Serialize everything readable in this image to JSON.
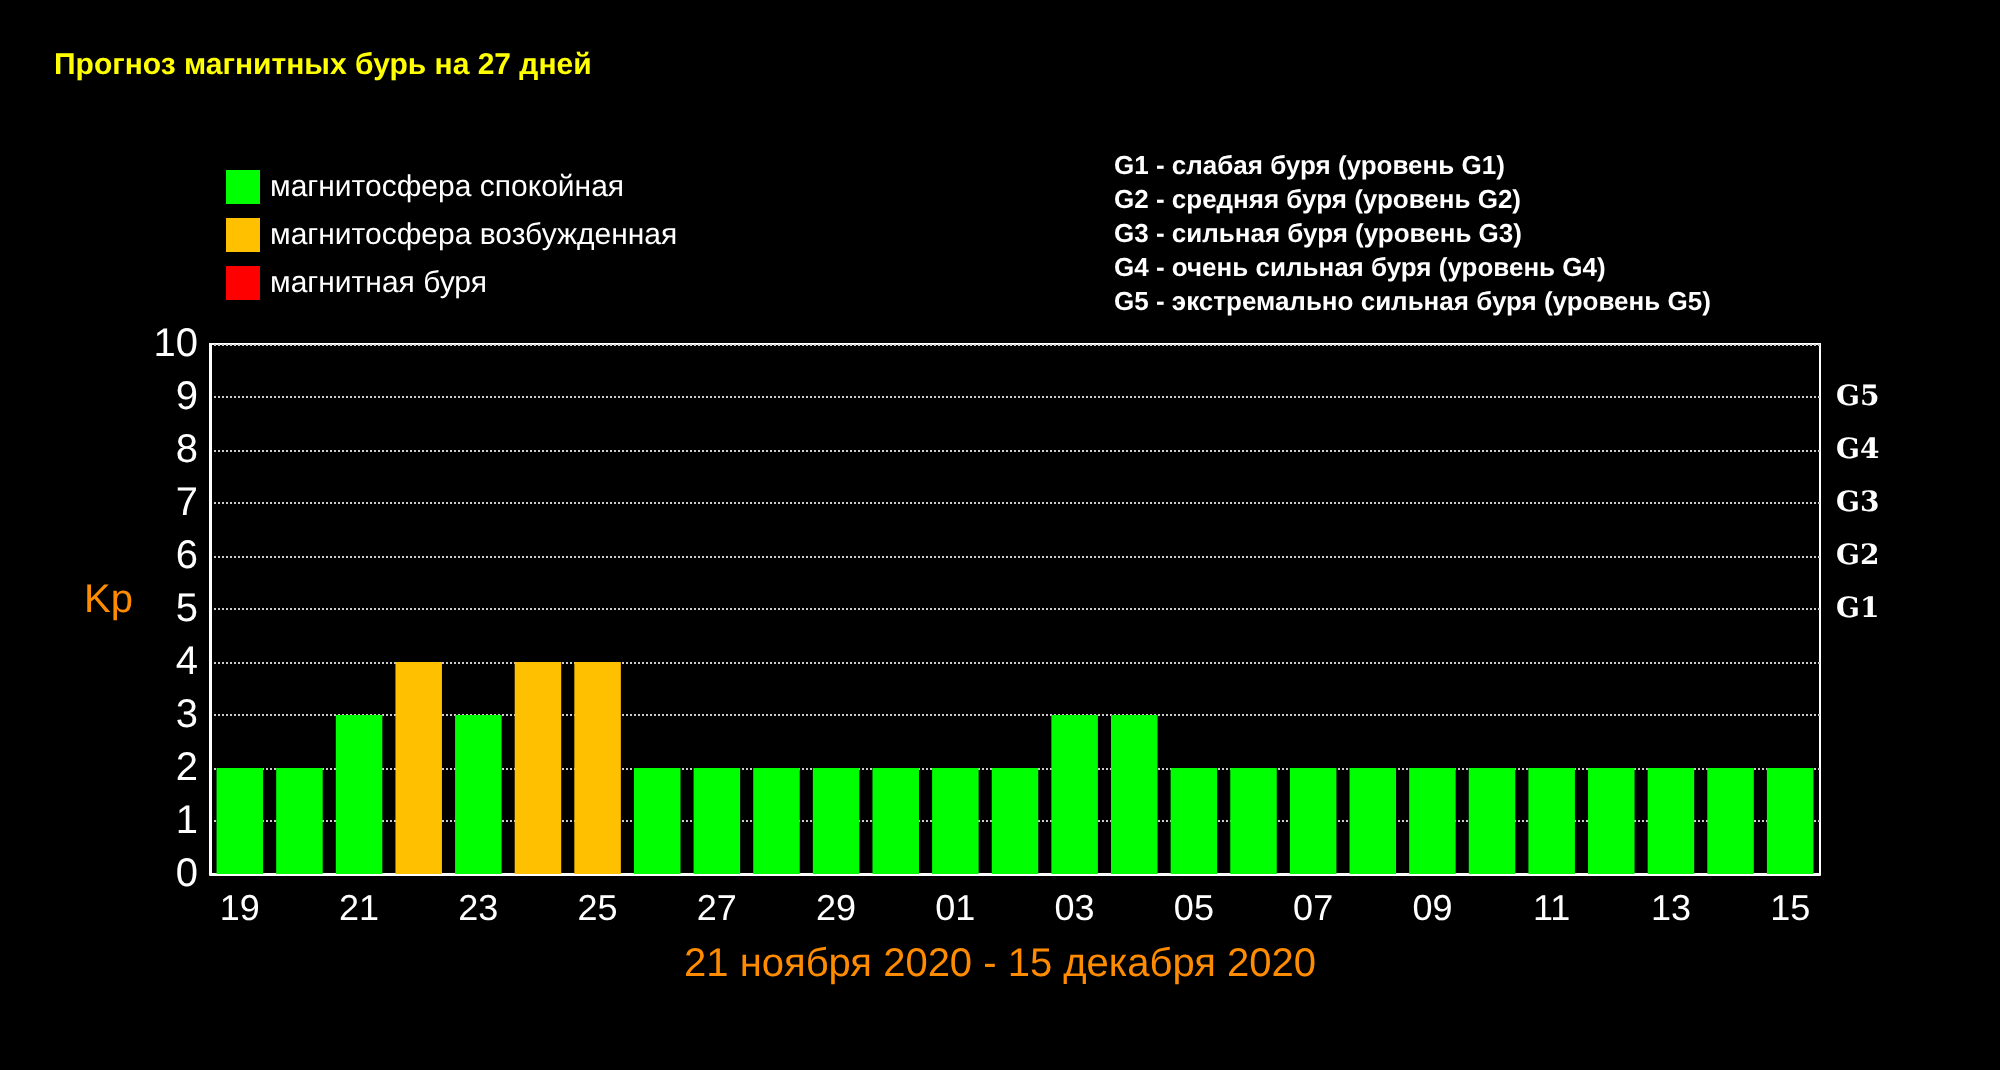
{
  "chart_data": {
    "type": "bar",
    "title": "Прогноз магнитных бурь на 27 дней",
    "xlabel": "21 ноября 2020 - 15 декабря 2020",
    "ylabel": "Kp",
    "categories": [
      "19",
      null,
      "21",
      null,
      "23",
      null,
      "25",
      null,
      "27",
      null,
      "29",
      null,
      "01",
      null,
      "03",
      null,
      "05",
      null,
      "07",
      null,
      "09",
      null,
      "11",
      null,
      "13",
      null,
      "15"
    ],
    "series": [
      {
        "name": "магнитосфера спокойная",
        "color": "#00ff00",
        "values": [
          2,
          2,
          3,
          null,
          3,
          null,
          null,
          2,
          2,
          2,
          2,
          2,
          2,
          2,
          3,
          3,
          2,
          2,
          2,
          2,
          2,
          2,
          2,
          2,
          2,
          2,
          2
        ]
      },
      {
        "name": "магнитосфера возбужденная",
        "color": "#ffc000",
        "values": [
          null,
          null,
          null,
          4,
          null,
          4,
          4,
          null,
          null,
          null,
          null,
          null,
          null,
          null,
          null,
          null,
          null,
          null,
          null,
          null,
          null,
          null,
          null,
          null,
          null,
          null,
          null
        ]
      },
      {
        "name": "магнитная буря",
        "color": "#ff0000",
        "values": [
          null,
          null,
          null,
          null,
          null,
          null,
          null,
          null,
          null,
          null,
          null,
          null,
          null,
          null,
          null,
          null,
          null,
          null,
          null,
          null,
          null,
          null,
          null,
          null,
          null,
          null,
          null
        ]
      }
    ],
    "ylim": [
      0,
      10
    ],
    "yticks": [
      0,
      1,
      2,
      3,
      4,
      5,
      6,
      7,
      8,
      9,
      10
    ],
    "grid": "y",
    "legend": "top left",
    "annotations": [
      "G1",
      "G2",
      "G3",
      "G4",
      "G5",
      "G1 - слабая буря (уровень G1)",
      "G2 - средняя буря (уровень G2)",
      "G3 - сильная буря (уровень G3)",
      "G4 - очень сильная буря (уровень G4)",
      "G5 - экстремально сильная буря (уровень G5)"
    ]
  }
}
